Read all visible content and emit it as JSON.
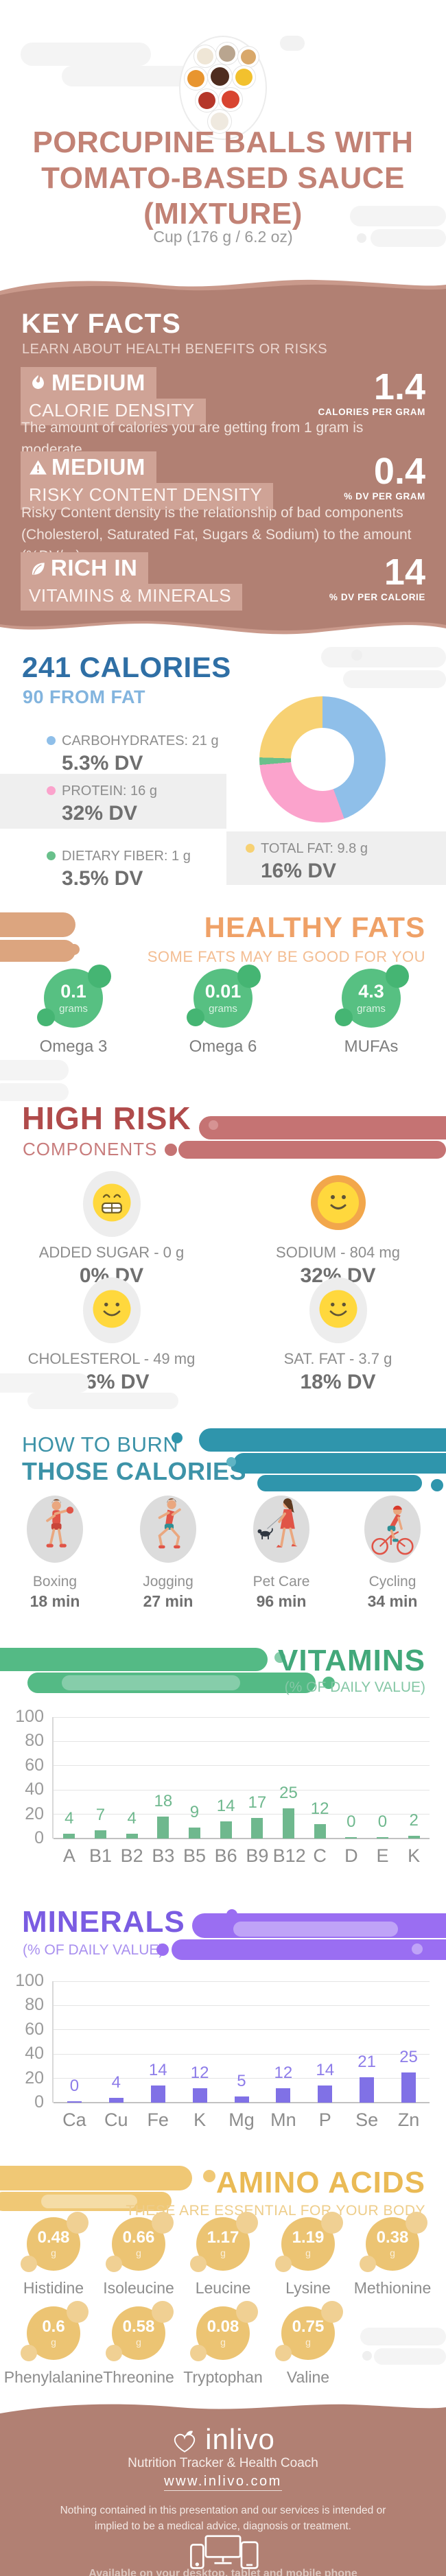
{
  "hero": {
    "title": "PORCUPINE BALLS WITH TOMATO-BASED SAUCE (MIXTURE)",
    "serving": "Cup (176 g / 6.2 oz)",
    "image": "sauce-bowls-photo"
  },
  "key_facts": {
    "heading": "KEY FACTS",
    "subheading": "LEARN ABOUT HEALTH BENEFITS OR RISKS",
    "items": [
      {
        "icon": "flame-icon",
        "badge": "MEDIUM",
        "label": "CALORIE DENSITY",
        "value": "1.4",
        "unit": "CALORIES PER GRAM",
        "description": "The amount of calories you are getting from 1 gram is moderate."
      },
      {
        "icon": "warning-icon",
        "badge": "MEDIUM",
        "label": "RISKY CONTENT DENSITY",
        "value": "0.4",
        "unit": "% DV PER GRAM",
        "description": "Risky Content density is the relationship of bad components (Cholesterol, Saturated Fat, Sugars & Sodium) to the amount (%DV/gr)."
      },
      {
        "icon": "leaf-icon",
        "badge": "RICH IN",
        "label": "VITAMINS & MINERALS",
        "value": "14",
        "unit": "% DV PER CALORIE",
        "description": ""
      }
    ]
  },
  "calories": {
    "heading": "241 CALORIES",
    "subheading": "90 FROM FAT",
    "legend": [
      {
        "name": "CARBOHYDRATES: 21 g",
        "dv": "5.3% DV",
        "color": "#8fbfe9",
        "highlight": false
      },
      {
        "name": "PROTEIN: 16 g",
        "dv": "32% DV",
        "color": "#fba3cc",
        "highlight": true
      },
      {
        "name": "DIETARY FIBER: 1 g",
        "dv": "3.5% DV",
        "color": "#69c08b",
        "highlight": false
      },
      {
        "name": "TOTAL FAT: 9.8 g",
        "dv": "16% DV",
        "color": "#f7d173",
        "highlight": true
      }
    ]
  },
  "healthy_fats": {
    "heading": "HEALTHY FATS",
    "subheading": "SOME FATS MAY BE GOOD FOR YOU",
    "items": [
      {
        "value": "0.1",
        "unit": "grams",
        "name": "Omega 3"
      },
      {
        "value": "0.01",
        "unit": "grams",
        "name": "Omega 6"
      },
      {
        "value": "4.3",
        "unit": "grams",
        "name": "MUFAs"
      }
    ]
  },
  "high_risk": {
    "heading": "HIGH RISK",
    "subheading": "COMPONENTS",
    "items": [
      {
        "icon": "grin-emoji",
        "label": "ADDED SUGAR - 0 g",
        "dv": "0% DV"
      },
      {
        "icon": "smile-orange-emoji",
        "label": "SODIUM - 804 mg",
        "dv": "32% DV"
      },
      {
        "icon": "smile-emoji",
        "label": "CHOLESTEROL - 49 mg",
        "dv": "16% DV"
      },
      {
        "icon": "smile-emoji",
        "label": "SAT. FAT - 3.7 g",
        "dv": "18% DV"
      }
    ]
  },
  "burn": {
    "heading_line1": "HOW TO BURN",
    "heading_line2": "THOSE CALORIES",
    "items": [
      {
        "icon": "boxing-figure",
        "name": "Boxing",
        "time": "18 min"
      },
      {
        "icon": "jogging-figure",
        "name": "Jogging",
        "time": "27 min"
      },
      {
        "icon": "petcare-figure",
        "name": "Pet Care",
        "time": "96 min"
      },
      {
        "icon": "cycling-figure",
        "name": "Cycling",
        "time": "34 min"
      }
    ]
  },
  "chart_data": [
    {
      "type": "pie",
      "variant": "donut",
      "title": "241 CALORIES",
      "note": "90 FROM FAT",
      "slices": [
        {
          "label": "CARBOHYDRATES",
          "grams": "21 g",
          "dv": "5.3% DV",
          "percent": 44.4,
          "color": "#8fbfe9"
        },
        {
          "label": "PROTEIN",
          "grams": "16 g",
          "dv": "32% DV",
          "percent": 29.2,
          "color": "#fba3cc"
        },
        {
          "label": "DIETARY FIBER",
          "grams": "1 g",
          "dv": "3.5% DV",
          "percent": 1.9,
          "color": "#69c08b"
        },
        {
          "label": "TOTAL FAT",
          "grams": "9.8 g",
          "dv": "16% DV",
          "percent": 24.5,
          "color": "#f7d173"
        }
      ]
    },
    {
      "type": "bar",
      "title": "VITAMINS",
      "subtitle": "(% OF DAILY VALUE)",
      "categories": [
        "A",
        "B1",
        "B2",
        "B3",
        "B5",
        "B6",
        "B9",
        "B12",
        "C",
        "D",
        "E",
        "K"
      ],
      "values": [
        4,
        7,
        4,
        18,
        9,
        14,
        17,
        25,
        12,
        0,
        0,
        2
      ],
      "ylim": [
        0,
        100
      ],
      "yticks": [
        0,
        20,
        40,
        60,
        80,
        100
      ],
      "bar_color": "#6fb88e",
      "label_color": "#6fb88e",
      "grid": true,
      "legend_position": "none"
    },
    {
      "type": "bar",
      "title": "MINERALS",
      "subtitle": "(% OF DAILY VALUE)",
      "categories": [
        "Ca",
        "Cu",
        "Fe",
        "K",
        "Mg",
        "Mn",
        "P",
        "Se",
        "Zn"
      ],
      "values": [
        0,
        4,
        14,
        12,
        5,
        12,
        14,
        21,
        25
      ],
      "ylim": [
        0,
        100
      ],
      "yticks": [
        0,
        20,
        40,
        60,
        80,
        100
      ],
      "bar_color": "#8071e6",
      "label_color": "#8d7ce9",
      "grid": true,
      "legend_position": "none"
    }
  ],
  "amino_acids": {
    "heading": "AMINO ACIDS",
    "subheading": "THESE ARE ESSENTIAL FOR YOUR BODY",
    "items": [
      {
        "value": "0.48",
        "unit": "g",
        "name": "Histidine"
      },
      {
        "value": "0.66",
        "unit": "g",
        "name": "Isoleucine"
      },
      {
        "value": "1.17",
        "unit": "g",
        "name": "Leucine"
      },
      {
        "value": "1.19",
        "unit": "g",
        "name": "Lysine"
      },
      {
        "value": "0.38",
        "unit": "g",
        "name": "Methionine"
      },
      {
        "value": "0.6",
        "unit": "g",
        "name": "Phenylalanine"
      },
      {
        "value": "0.58",
        "unit": "g",
        "name": "Threonine"
      },
      {
        "value": "0.08",
        "unit": "g",
        "name": "Tryptophan"
      },
      {
        "value": "0.75",
        "unit": "g",
        "name": "Valine"
      }
    ]
  },
  "footer": {
    "brand": "inlivo",
    "tagline": "Nutrition Tracker & Health Coach",
    "url": "www.inlivo.com",
    "disclaimer": "Nothing contained in this presentation and our services is intended or implied to be a medical advice, diagnosis or treatment.",
    "availability": "Available on your desktop, tablet and mobile phone"
  },
  "colors": {
    "rose": "#b18073",
    "rose_light": "#c9998b",
    "chip_pink": "#cfa396",
    "blue_heading": "#2f6fa5",
    "blue_light": "#82b4de",
    "orange": "#efa167",
    "green_circle": "#57c082",
    "red_heading": "#b04b4b",
    "teal": "#3d93a8",
    "vitamins_green": "#42a87a",
    "bar_green": "#6fb88e",
    "minerals_purple": "#7a5ce2",
    "bar_purple": "#8071e6",
    "amber": "#eaba55",
    "amino_circle": "#ecc473",
    "smiley_yellow": "#ffd83d",
    "sodium_ring": "#f2a74b",
    "gray_text": "#8d8d8d"
  }
}
